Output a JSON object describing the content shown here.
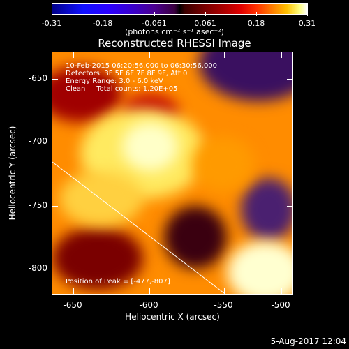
{
  "colorbar": {
    "tick_labels": [
      "-0.31",
      "-0.18",
      "-0.061",
      "0.061",
      "0.18",
      "0.31"
    ],
    "units": "(photons cm⁻² s⁻¹ asec⁻²)"
  },
  "title": "Reconstructed RHESSI Image",
  "annotations": {
    "line1": "10-Feb-2015 06:20:56.000 to 06:30:56.000",
    "line2": "Detectors: 3F 5F 6F 7F 8F 9F, Att 0",
    "line3": "Energy Range: 3.0 - 6.0 keV",
    "line4": "Clean     Total counts: 1.20E+05",
    "peak": "Position of Peak = [-477,-807]"
  },
  "axes": {
    "xlabel": "Heliocentric X (arcsec)",
    "ylabel": "Heliocentric Y (arcsec)",
    "xticks": [
      "-650",
      "-600",
      "-550",
      "-500"
    ],
    "yticks": [
      "-650",
      "-700",
      "-750",
      "-800"
    ]
  },
  "datestamp": "5-Aug-2017 12:04"
}
